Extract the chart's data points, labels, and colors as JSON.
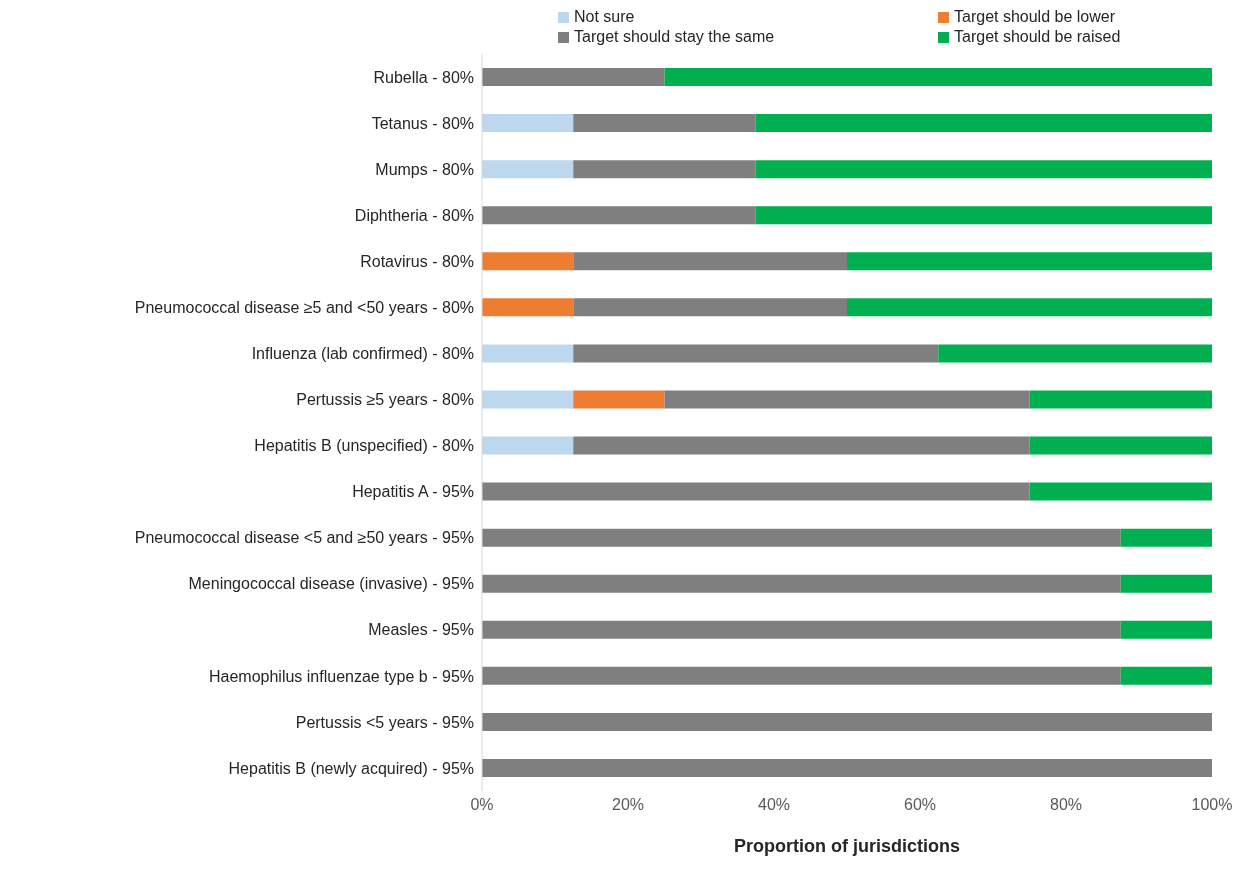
{
  "chart_data": {
    "type": "bar",
    "orientation": "horizontal",
    "stacked": true,
    "xlabel": "Proportion of jurisdictions",
    "legend": "top",
    "categories": [
      "Rubella - 80%",
      "Tetanus - 80%",
      "Mumps - 80%",
      "Diphtheria - 80%",
      "Rotavirus - 80%",
      "Pneumococcal disease ≥5 and <50 years - 80%",
      "Influenza (lab confirmed) - 80%",
      "Pertussis ≥5 years - 80%",
      "Hepatitis B (unspecified) - 80%",
      "Hepatitis A - 95%",
      "Pneumococcal disease <5 and ≥50 years - 95%",
      "Meningococcal disease (invasive) - 95%",
      "Measles - 95%",
      "Haemophilus influenzae type b - 95%",
      "Pertussis <5 years - 95%",
      "Hepatitis B (newly acquired) - 95%"
    ],
    "series": [
      {
        "name": "Not sure",
        "color": "#bdd7ee",
        "values": [
          0,
          12.5,
          12.5,
          0,
          0,
          0,
          12.5,
          12.5,
          12.5,
          0,
          0,
          0,
          0,
          0,
          0,
          0
        ]
      },
      {
        "name": "Target should be lower",
        "color": "#ed7d31",
        "values": [
          0,
          0,
          0,
          0,
          12.5,
          12.5,
          0,
          12.5,
          0,
          0,
          0,
          0,
          0,
          0,
          0,
          0
        ]
      },
      {
        "name": "Target should stay the same",
        "color": "#7f7f7f",
        "values": [
          25,
          25,
          25,
          37.5,
          37.5,
          37.5,
          50,
          50,
          62.5,
          75,
          87.5,
          87.5,
          87.5,
          87.5,
          100,
          100
        ]
      },
      {
        "name": "Target should be raised",
        "color": "#00b050",
        "values": [
          75,
          62.5,
          62.5,
          62.5,
          50,
          50,
          37.5,
          25,
          25,
          25,
          12.5,
          12.5,
          12.5,
          12.5,
          0,
          0
        ]
      }
    ],
    "xlim": [
      0,
      100
    ],
    "xticks": [
      {
        "value": 0,
        "label": "0%"
      },
      {
        "value": 20,
        "label": "20%"
      },
      {
        "value": 40,
        "label": "40%"
      },
      {
        "value": 60,
        "label": "60%"
      },
      {
        "value": 80,
        "label": "80%"
      },
      {
        "value": 100,
        "label": "100%"
      }
    ]
  }
}
